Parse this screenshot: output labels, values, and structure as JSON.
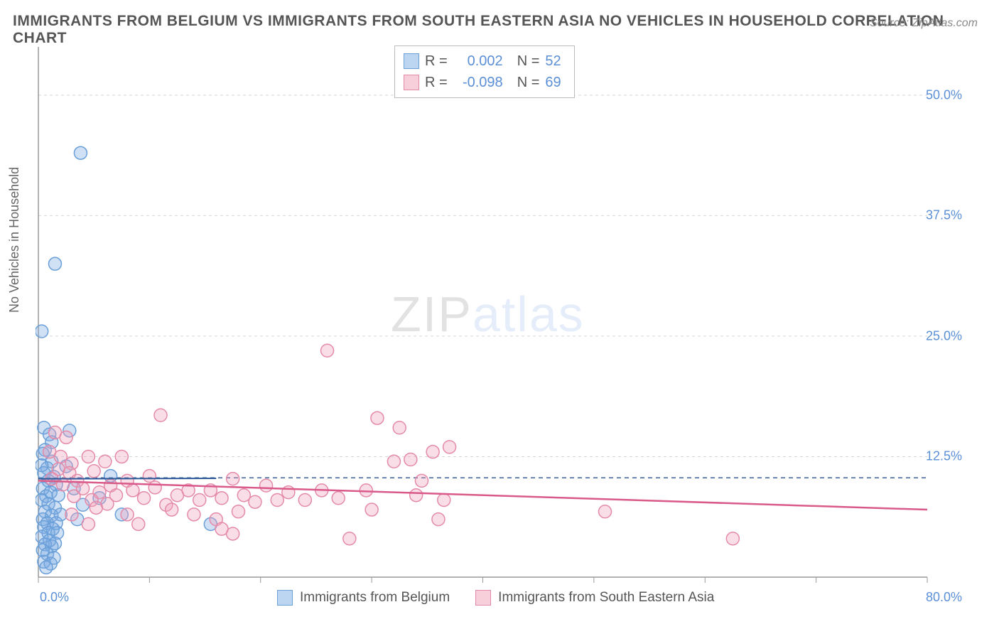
{
  "title": "IMMIGRANTS FROM BELGIUM VS IMMIGRANTS FROM SOUTH EASTERN ASIA NO VEHICLES IN HOUSEHOLD CORRELATION CHART",
  "source": "Source: ZipAtlas.com",
  "ylabel": "No Vehicles in Household",
  "watermark_zip": "ZIP",
  "watermark_atlas": "atlas",
  "chart": {
    "type": "scatter",
    "xlim": [
      0,
      80
    ],
    "ylim": [
      0,
      55
    ],
    "background_color": "#ffffff",
    "grid_color": "#d8d8d8",
    "grid_dash": "4,4",
    "axis_color": "#999999",
    "y_gridlines": [
      12.5,
      25.0,
      37.5,
      50.0
    ],
    "x_gridlines": [
      0,
      10,
      20,
      30,
      40,
      50,
      60,
      70,
      80
    ],
    "y_tick_labels": [
      {
        "v": 12.5,
        "t": "12.5%"
      },
      {
        "v": 25.0,
        "t": "25.0%"
      },
      {
        "v": 37.5,
        "t": "37.5%"
      },
      {
        "v": 50.0,
        "t": "50.0%"
      }
    ],
    "x_tick_labels": {
      "left": "0.0%",
      "right": "80.0%"
    },
    "marker_radius": 9,
    "marker_stroke_width": 1.5,
    "dashed_ref_line": {
      "y": 10.3,
      "color": "#3a5f9a",
      "dash": "6,5"
    },
    "series": [
      {
        "name": "Immigrants from Belgium",
        "fill": "rgba(120,170,225,0.35)",
        "stroke": "#6a9fd8",
        "swatch_fill": "#bcd5f0",
        "swatch_border": "#6a9fd8",
        "stats": {
          "R_label": "R =",
          "R": "0.002",
          "N_label": "N =",
          "N": "52"
        },
        "trend": {
          "x1": 0,
          "y1": 10.2,
          "x2": 16,
          "y2": 10.25,
          "color": "#2e5a99",
          "width": 2
        },
        "points": [
          [
            0.3,
            25.5
          ],
          [
            3.8,
            44.0
          ],
          [
            1.5,
            32.5
          ],
          [
            0.5,
            15.5
          ],
          [
            1.0,
            14.8
          ],
          [
            1.2,
            14.0
          ],
          [
            0.6,
            13.2
          ],
          [
            2.8,
            15.2
          ],
          [
            0.4,
            12.8
          ],
          [
            1.2,
            12.0
          ],
          [
            0.8,
            11.3
          ],
          [
            0.3,
            11.6
          ],
          [
            0.5,
            10.8
          ],
          [
            1.4,
            10.4
          ],
          [
            0.9,
            10.0
          ],
          [
            1.6,
            9.6
          ],
          [
            0.4,
            9.2
          ],
          [
            1.1,
            8.8
          ],
          [
            0.7,
            8.4
          ],
          [
            1.8,
            8.5
          ],
          [
            0.3,
            8.0
          ],
          [
            0.9,
            7.6
          ],
          [
            1.5,
            7.2
          ],
          [
            0.6,
            6.8
          ],
          [
            1.2,
            6.4
          ],
          [
            0.4,
            6.0
          ],
          [
            2.0,
            6.5
          ],
          [
            0.8,
            5.6
          ],
          [
            1.6,
            5.6
          ],
          [
            0.5,
            5.2
          ],
          [
            1.3,
            5.0
          ],
          [
            0.9,
            4.6
          ],
          [
            1.7,
            4.6
          ],
          [
            0.3,
            4.2
          ],
          [
            1.0,
            3.8
          ],
          [
            1.5,
            3.5
          ],
          [
            0.6,
            3.4
          ],
          [
            1.2,
            3.2
          ],
          [
            0.4,
            2.8
          ],
          [
            0.8,
            2.4
          ],
          [
            1.4,
            2.0
          ],
          [
            0.5,
            1.6
          ],
          [
            1.1,
            1.4
          ],
          [
            0.7,
            1.0
          ],
          [
            2.5,
            11.5
          ],
          [
            3.2,
            9.2
          ],
          [
            4.0,
            7.5
          ],
          [
            5.5,
            8.2
          ],
          [
            7.5,
            6.5
          ],
          [
            3.5,
            6.0
          ],
          [
            6.5,
            10.5
          ],
          [
            15.5,
            5.5
          ]
        ]
      },
      {
        "name": "Immigrants from South Eastern Asia",
        "fill": "rgba(240,160,185,0.35)",
        "stroke": "#e48aa8",
        "swatch_fill": "#f6cfdb",
        "swatch_border": "#e48aa8",
        "stats": {
          "R_label": "R =",
          "R": "-0.098",
          "N_label": "N =",
          "N": "69"
        },
        "trend": {
          "x1": 0,
          "y1": 10.0,
          "x2": 80,
          "y2": 7.0,
          "color": "#d95a89",
          "width": 2.5
        },
        "points": [
          [
            1.5,
            15.0
          ],
          [
            2.5,
            14.5
          ],
          [
            1.0,
            13.0
          ],
          [
            2.0,
            12.5
          ],
          [
            3.0,
            11.8
          ],
          [
            1.8,
            11.2
          ],
          [
            2.8,
            10.8
          ],
          [
            1.2,
            10.2
          ],
          [
            3.5,
            10.0
          ],
          [
            2.2,
            9.6
          ],
          [
            4.5,
            12.5
          ],
          [
            5.0,
            11.0
          ],
          [
            6.0,
            12.0
          ],
          [
            4.0,
            9.2
          ],
          [
            5.5,
            8.8
          ],
          [
            3.2,
            8.4
          ],
          [
            6.5,
            9.5
          ],
          [
            7.5,
            12.5
          ],
          [
            8.0,
            10.0
          ],
          [
            4.8,
            8.0
          ],
          [
            6.2,
            7.6
          ],
          [
            5.2,
            7.2
          ],
          [
            7.0,
            8.5
          ],
          [
            8.5,
            9.0
          ],
          [
            9.5,
            8.2
          ],
          [
            10.5,
            9.3
          ],
          [
            11.5,
            7.5
          ],
          [
            12.5,
            8.5
          ],
          [
            10.0,
            10.5
          ],
          [
            13.5,
            9.0
          ],
          [
            14.5,
            8.0
          ],
          [
            12.0,
            7.0
          ],
          [
            15.5,
            9.0
          ],
          [
            16.5,
            8.2
          ],
          [
            17.5,
            10.2
          ],
          [
            18.5,
            8.5
          ],
          [
            19.5,
            7.8
          ],
          [
            20.5,
            9.5
          ],
          [
            21.5,
            8.0
          ],
          [
            14.0,
            6.5
          ],
          [
            16.0,
            6.0
          ],
          [
            18.0,
            6.8
          ],
          [
            22.5,
            8.8
          ],
          [
            24.0,
            8.0
          ],
          [
            25.5,
            9.0
          ],
          [
            27.0,
            8.2
          ],
          [
            29.5,
            9.0
          ],
          [
            26.0,
            23.5
          ],
          [
            30.5,
            16.5
          ],
          [
            32.0,
            12.0
          ],
          [
            30.0,
            7.0
          ],
          [
            34.0,
            8.5
          ],
          [
            32.5,
            15.5
          ],
          [
            35.5,
            13.0
          ],
          [
            34.5,
            10.0
          ],
          [
            36.0,
            6.0
          ],
          [
            37.0,
            13.5
          ],
          [
            36.5,
            8.0
          ],
          [
            33.5,
            12.2
          ],
          [
            51.0,
            6.8
          ],
          [
            62.5,
            4.0
          ],
          [
            11.0,
            16.8
          ],
          [
            28.0,
            4.0
          ],
          [
            16.5,
            5.0
          ],
          [
            17.5,
            4.5
          ],
          [
            8.0,
            6.5
          ],
          [
            9.0,
            5.5
          ],
          [
            3.0,
            6.5
          ],
          [
            4.5,
            5.5
          ]
        ]
      }
    ]
  },
  "bottom_legend": [
    {
      "label": "Immigrants from Belgium",
      "fill": "#bcd5f0",
      "border": "#6a9fd8"
    },
    {
      "label": "Immigrants from South Eastern Asia",
      "fill": "#f6cfdb",
      "border": "#e48aa8"
    }
  ]
}
